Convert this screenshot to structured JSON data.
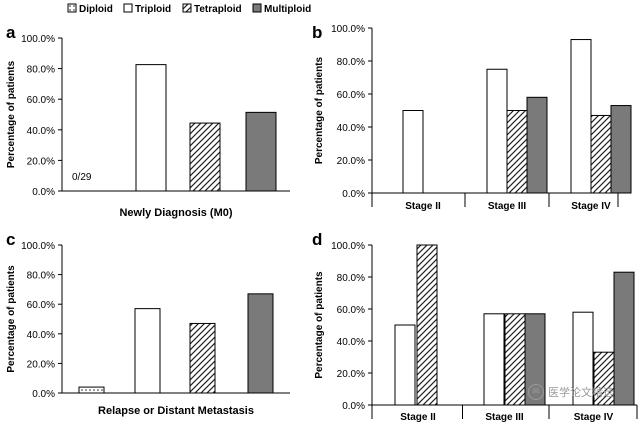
{
  "legend": {
    "entries": [
      {
        "label": "Diploid",
        "pattern": "dots"
      },
      {
        "label": "Triploid",
        "pattern": "white"
      },
      {
        "label": "Tetraploid",
        "pattern": "hatch"
      },
      {
        "label": "Multiploid",
        "pattern": "gray"
      }
    ]
  },
  "colors": {
    "multiploid_fill": "#7a7a7a",
    "axis": "#000000"
  },
  "watermark": {
    "text": "医学论文精选"
  },
  "chart_data": [
    {
      "panel": "a",
      "type": "bar",
      "ylabel": "Percentage of patients",
      "yticks": [
        "0.0%",
        "20.0%",
        "40.0%",
        "60.0%",
        "80.0%",
        "100.0%"
      ],
      "ylim": [
        0,
        100
      ],
      "xlabel": "Newly Diagnosis (M0)",
      "groups": [
        {
          "label": "",
          "values": [
            0,
            82.6,
            44.4,
            51.4
          ]
        }
      ],
      "annotations": [
        {
          "text": "0/29",
          "series": "Diploid"
        }
      ]
    },
    {
      "panel": "b",
      "type": "bar",
      "ylabel": "Percentage of patients",
      "yticks": [
        "0.0%",
        "20.0%",
        "40.0%",
        "60.0%",
        "80.0%",
        "100.0%"
      ],
      "ylim": [
        0,
        100
      ],
      "xlabel": "",
      "groups": [
        {
          "label": "Stage II",
          "values": [
            0,
            50,
            0,
            0
          ]
        },
        {
          "label": "Stage III",
          "values": [
            0,
            75,
            50,
            58
          ]
        },
        {
          "label": "Stage IV",
          "values": [
            0,
            93,
            47,
            53
          ]
        }
      ]
    },
    {
      "panel": "c",
      "type": "bar",
      "ylabel": "Percentage of patients",
      "yticks": [
        "0.0%",
        "20.0%",
        "40.0%",
        "60.0%",
        "80.0%",
        "100.0%"
      ],
      "ylim": [
        0,
        100
      ],
      "xlabel": "Relapse or Distant Metastasis",
      "groups": [
        {
          "label": "",
          "values": [
            4,
            57,
            47,
            67
          ]
        }
      ]
    },
    {
      "panel": "d",
      "type": "bar",
      "ylabel": "Percentage of patients",
      "yticks": [
        "0.0%",
        "20.0%",
        "40.0%",
        "60.0%",
        "80.0%",
        "100.0%"
      ],
      "ylim": [
        0,
        100
      ],
      "xlabel": "",
      "groups": [
        {
          "label": "Stage II",
          "values": [
            0,
            50,
            100,
            0
          ]
        },
        {
          "label": "Stage III",
          "values": [
            0,
            57,
            57,
            57
          ]
        },
        {
          "label": "Stage IV",
          "values": [
            0,
            58,
            33,
            83
          ]
        }
      ]
    }
  ]
}
